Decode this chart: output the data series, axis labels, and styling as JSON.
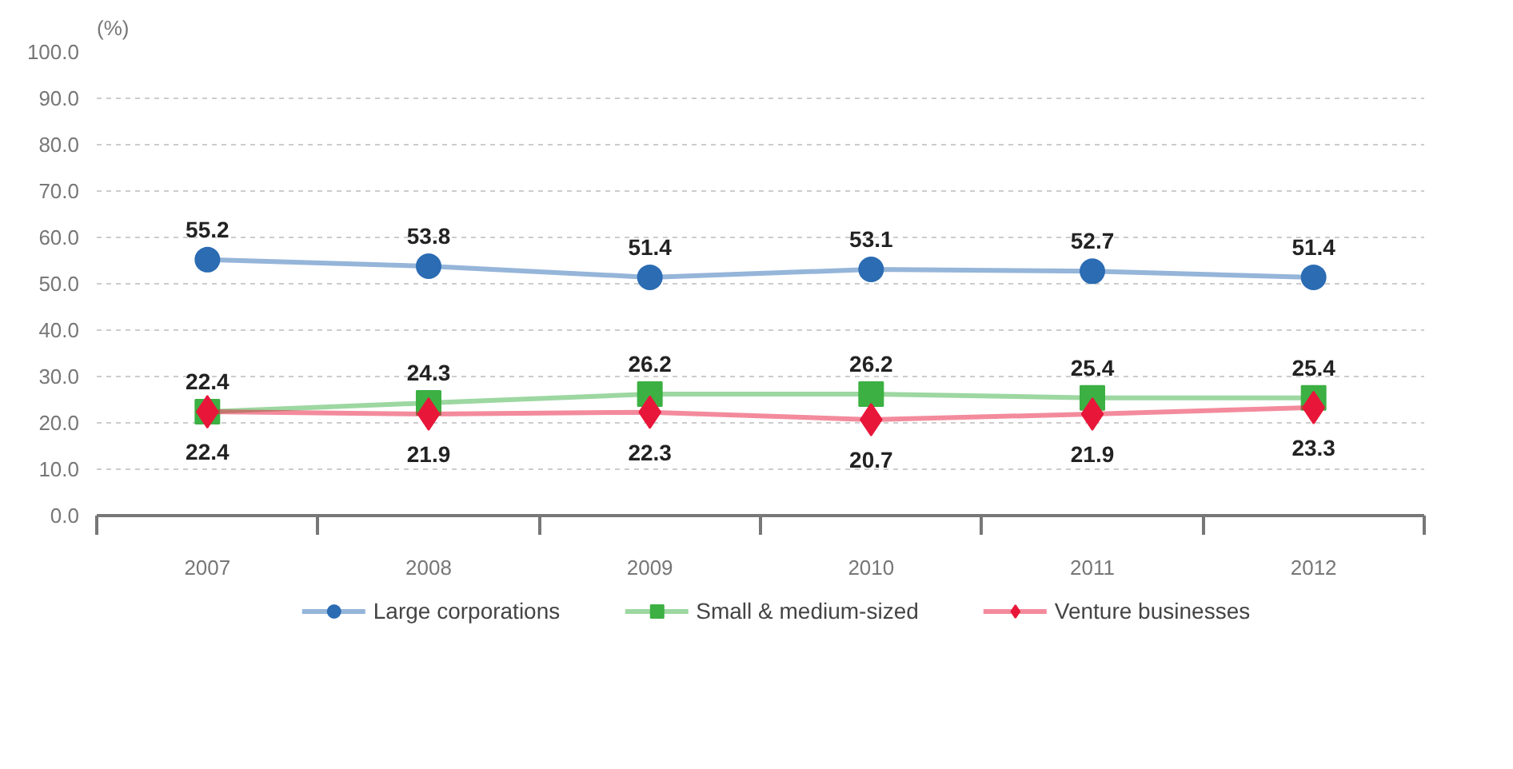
{
  "chart_data": {
    "type": "line",
    "ylabel": "(%)",
    "categories": [
      "2007",
      "2008",
      "2009",
      "2010",
      "2011",
      "2012"
    ],
    "series": [
      {
        "name": "Large corporations",
        "color": "#2b6cb3",
        "marker": "circle",
        "values": [
          55.2,
          53.8,
          51.4,
          53.1,
          52.7,
          51.4
        ]
      },
      {
        "name": "Small & medium-sized",
        "color": "#3cb043",
        "marker": "square",
        "values": [
          22.4,
          24.3,
          26.2,
          26.2,
          25.4,
          25.4
        ]
      },
      {
        "name": "Venture businesses",
        "color": "#e8173a",
        "marker": "diamond",
        "values": [
          22.4,
          21.9,
          22.3,
          20.7,
          21.9,
          23.3
        ]
      }
    ],
    "ylim": [
      0,
      100
    ],
    "yticks": [
      {
        "value": 0,
        "label": "0.0"
      },
      {
        "value": 10,
        "label": "10.0"
      },
      {
        "value": 20,
        "label": "20.0"
      },
      {
        "value": 30,
        "label": "30.0"
      },
      {
        "value": 40,
        "label": "40.0"
      },
      {
        "value": 50,
        "label": "50.0"
      },
      {
        "value": 60,
        "label": "60.0"
      },
      {
        "value": 70,
        "label": "70.0"
      },
      {
        "value": 80,
        "label": "80.0"
      },
      {
        "value": 90,
        "label": "90.0"
      },
      {
        "value": 100,
        "label": "100.0"
      }
    ],
    "grid": "y",
    "legend": "bottom",
    "data_labels": true,
    "line_style": "solid"
  }
}
